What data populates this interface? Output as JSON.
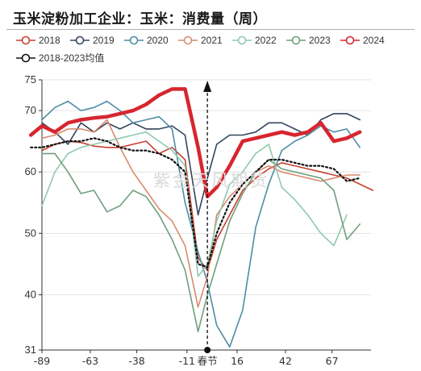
{
  "chart_data": {
    "type": "line",
    "title": "玉米淀粉加工企业：玉米：消费量（周）",
    "watermark": "紫金天风期货",
    "ylim": [
      31,
      75
    ],
    "yticks": [
      31,
      40,
      50,
      60,
      70,
      75
    ],
    "xlim": [
      -89,
      88
    ],
    "xticks": [
      -89,
      -63,
      -38,
      -11,
      16,
      42,
      67
    ],
    "spring_festival_x": 0,
    "spring_festival_label": "春节",
    "grid": true,
    "legend": "top",
    "x": [
      -95,
      -89,
      -82,
      -75,
      -68,
      -61,
      -54,
      -47,
      -40,
      -33,
      -26,
      -19,
      -12,
      -5,
      0,
      5,
      12,
      19,
      26,
      33,
      40,
      47,
      54,
      61,
      68,
      75,
      82,
      89
    ],
    "series": [
      {
        "name": "2018",
        "color": "#c8402e",
        "values": [
          null,
          63.5,
          64.5,
          65.0,
          64.8,
          64.2,
          64.0,
          64.0,
          64.5,
          65.0,
          63.0,
          64.0,
          62.0,
          46.0,
          44.0,
          49.0,
          53.0,
          57.0,
          59.0,
          60.5,
          61.5,
          61.0,
          60.5,
          60.0,
          59.5,
          59.0,
          58.0,
          57.0
        ]
      },
      {
        "name": "2019",
        "color": "#34455e",
        "values": [
          null,
          68.0,
          66.5,
          64.5,
          68.0,
          66.5,
          68.0,
          67.0,
          68.0,
          67.0,
          67.0,
          67.5,
          66.0,
          53.0,
          59.0,
          64.5,
          66.0,
          66.0,
          66.5,
          68.0,
          68.0,
          67.0,
          66.0,
          68.5,
          69.5,
          69.5,
          68.5,
          null
        ]
      },
      {
        "name": "2020",
        "color": "#4e8ca6",
        "values": [
          null,
          68.5,
          70.5,
          71.5,
          70.0,
          70.5,
          71.5,
          70.0,
          68.0,
          68.5,
          69.0,
          67.0,
          55.0,
          47.0,
          42.0,
          35.0,
          31.5,
          37.5,
          51.0,
          58.0,
          63.5,
          65.0,
          66.0,
          67.5,
          66.5,
          67.0,
          64.0,
          null
        ]
      },
      {
        "name": "2021",
        "color": "#d98a6d",
        "values": [
          null,
          65.5,
          66.0,
          67.0,
          67.0,
          66.5,
          68.5,
          64.0,
          60.0,
          57.0,
          54.0,
          52.0,
          48.0,
          38.0,
          43.0,
          53.0,
          56.0,
          58.0,
          60.0,
          61.0,
          60.0,
          59.5,
          59.0,
          58.5,
          59.0,
          59.5,
          59.5,
          null
        ]
      },
      {
        "name": "2022",
        "color": "#8fc9ad",
        "values": [
          null,
          54.5,
          60.0,
          63.0,
          64.0,
          64.5,
          65.0,
          65.5,
          66.0,
          66.5,
          65.0,
          63.5,
          61.0,
          43.0,
          45.0,
          52.0,
          58.0,
          60.0,
          63.0,
          64.5,
          57.5,
          55.5,
          53.0,
          50.0,
          48.0,
          53.0,
          null,
          null
        ]
      },
      {
        "name": "2023",
        "color": "#6f9e7e",
        "values": [
          null,
          63.0,
          63.0,
          60.0,
          56.5,
          57.0,
          53.5,
          54.5,
          57.0,
          56.0,
          53.0,
          49.0,
          44.0,
          34.0,
          40.0,
          45.0,
          52.0,
          56.5,
          60.0,
          62.0,
          60.5,
          60.0,
          59.5,
          59.0,
          57.0,
          49.0,
          51.5,
          null
        ]
      },
      {
        "name": "2024",
        "color": "#d7262f",
        "values": [
          66.0,
          67.5,
          66.5,
          68.0,
          68.5,
          68.8,
          69.0,
          69.5,
          70.0,
          71.0,
          72.5,
          73.5,
          73.5,
          64.0,
          56.0,
          57.5,
          61.0,
          65.0,
          65.5,
          66.0,
          66.5,
          66.0,
          66.5,
          68.0,
          65.0,
          65.5,
          66.5,
          null
        ]
      },
      {
        "name": "2018-2023均值",
        "color": "#111111",
        "dashed": true,
        "values": [
          64.0,
          64.0,
          64.5,
          65.0,
          65.0,
          65.5,
          65.0,
          64.0,
          63.5,
          63.5,
          63.0,
          62.0,
          60.0,
          45.0,
          44.5,
          50.0,
          55.0,
          58.0,
          60.0,
          62.0,
          62.0,
          61.5,
          61.0,
          61.0,
          60.5,
          58.5,
          59.0,
          null
        ]
      }
    ]
  }
}
